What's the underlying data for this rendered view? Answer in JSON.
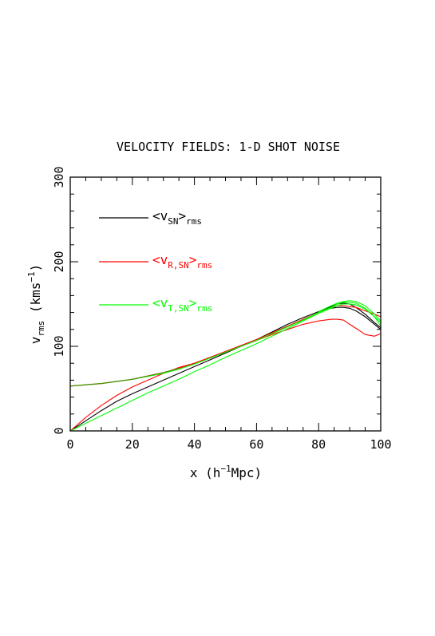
{
  "chart_data": {
    "type": "line",
    "title": "VELOCITY FIELDS: 1-D SHOT NOISE",
    "xlabel": {
      "main": "x (h",
      "sup": "−1",
      "tail": "Mpc)"
    },
    "ylabel": {
      "main": "v",
      "sub": "rms",
      "tail": " (kms",
      "sup": "−1",
      "end": ")"
    },
    "xlim": [
      0,
      100
    ],
    "ylim": [
      0,
      300
    ],
    "xticks": [
      0,
      20,
      40,
      60,
      80,
      100
    ],
    "yticks": [
      0,
      100,
      200,
      300
    ],
    "xtick_labels": [
      "0",
      "20",
      "40",
      "60",
      "80",
      "100"
    ],
    "ytick_labels": [
      "0",
      "100",
      "200",
      "300"
    ],
    "grid": false,
    "legend_position": "upper-left",
    "series": [
      {
        "key": "v_sn",
        "legend": {
          "pre": "<v",
          "sub": "SN",
          "mid": ">",
          "sub2": "rms"
        },
        "color": "#000000",
        "lines": [
          {
            "x": [
              0,
              5,
              10,
              15,
              20,
              25,
              30,
              35,
              40,
              45,
              50,
              55,
              60,
              65,
              70,
              75,
              80,
              84,
              86,
              88,
              90,
              92,
              95,
              98,
              100
            ],
            "y": [
              0,
              12,
              24,
              35,
              44,
              52,
              60,
              68,
              76,
              84,
              92,
              100,
              108,
              117,
              126,
              134,
              141,
              145,
              146,
              146,
              145,
              142,
              135,
              126,
              120
            ]
          },
          {
            "x": [
              80,
              84,
              86,
              88,
              90,
              92,
              95,
              98,
              100
            ],
            "y": [
              141,
              147,
              150,
              151,
              150,
              146,
              138,
              128,
              122
            ]
          }
        ]
      },
      {
        "key": "v_r_sn",
        "legend": {
          "pre": "<v",
          "sub": "R,SN",
          "mid": ">",
          "sub2": "rms"
        },
        "color": "#ff0000",
        "lines": [
          {
            "x": [
              0,
              5,
              10,
              15,
              20,
              25,
              30,
              35,
              40,
              45,
              50,
              55,
              60,
              65,
              70,
              75,
              80,
              84,
              86,
              88,
              90,
              93,
              95,
              98,
              100
            ],
            "y": [
              0,
              16,
              30,
              42,
              52,
              60,
              68,
              75,
              80,
              86,
              93,
              100,
              107,
              114,
              120,
              126,
              130,
              132,
              132,
              131,
              126,
              119,
              114,
              112,
              115
            ]
          },
          {
            "x": [
              0,
              10,
              20,
              30,
              35,
              40,
              45,
              50,
              55,
              60,
              65,
              70,
              75,
              80,
              84,
              86,
              88,
              90,
              92,
              95,
              98,
              100
            ],
            "y": [
              53,
              56,
              61,
              69,
              74,
              80,
              87,
              94,
              101,
              108,
              116,
              124,
              132,
              140,
              146,
              148,
              148,
              147,
              146,
              142,
              138,
              135
            ]
          }
        ]
      },
      {
        "key": "v_t_sn",
        "legend": {
          "pre": "<v",
          "sub": "T,SN",
          "mid": ">",
          "sub2": "rms"
        },
        "color": "#00ff00",
        "lines": [
          {
            "x": [
              0,
              5,
              10,
              15,
              20,
              25,
              30,
              35,
              40,
              45,
              50,
              55,
              60,
              65,
              70,
              75,
              80,
              84,
              86,
              88,
              90,
              92,
              95,
              98,
              100
            ],
            "y": [
              0,
              9,
              18,
              27,
              36,
              45,
              53,
              61,
              70,
              78,
              87,
              95,
              103,
              112,
              121,
              130,
              139,
              145,
              148,
              150,
              150,
              149,
              144,
              135,
              128
            ]
          },
          {
            "x": [
              80,
              84,
              86,
              88,
              90,
              92,
              95,
              98,
              100
            ],
            "y": [
              141,
              148,
              151,
              153,
              154,
              153,
              148,
              138,
              130
            ]
          },
          {
            "x": [
              0,
              10,
              20,
              30,
              35,
              40,
              45,
              50,
              55,
              60,
              65,
              70,
              75,
              80,
              84,
              86,
              88,
              90,
              92,
              95,
              98,
              100
            ],
            "y": [
              53,
              56,
              61,
              68,
              73,
              79,
              86,
              93,
              100,
              107,
              115,
              123,
              131,
              140,
              146,
              150,
              152,
              152,
              151,
              145,
              135,
              124
            ]
          }
        ]
      }
    ],
    "overlap_color": "#4d8c00"
  }
}
